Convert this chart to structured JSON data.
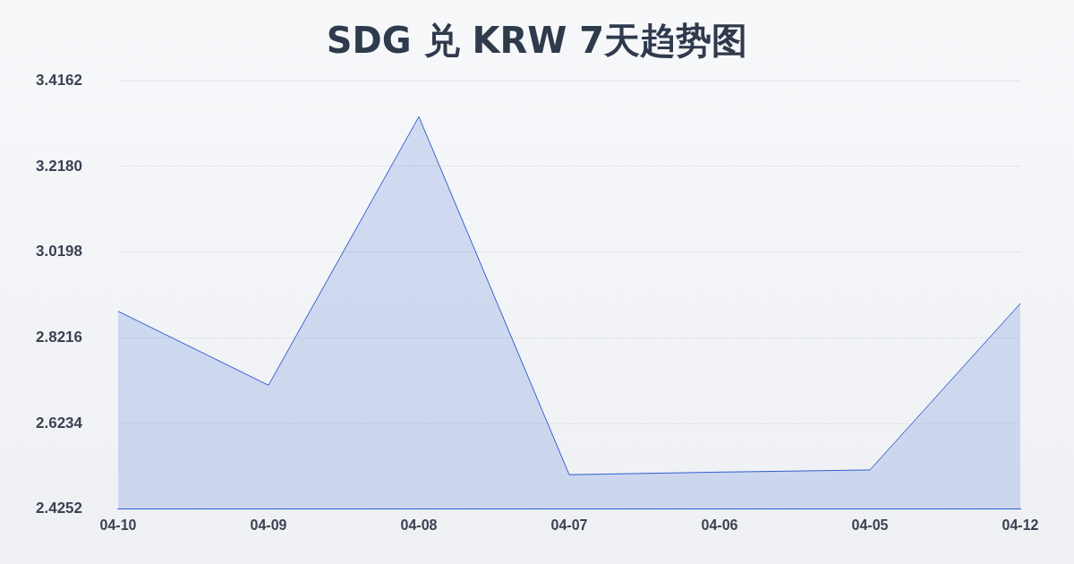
{
  "chart_data": {
    "type": "area",
    "title": "SDG 兑 KRW 7天趋势图",
    "categories": [
      "04-10",
      "04-09",
      "04-08",
      "04-07",
      "04-06",
      "04-05",
      "04-12"
    ],
    "series": [
      {
        "color": "#2f5fd0",
        "values": [
          2.883,
          2.712,
          3.333,
          2.505,
          2.511,
          2.516,
          2.901
        ]
      }
    ],
    "ylim": [
      2.4252,
      3.4162
    ],
    "yticks": [
      2.4252,
      2.6234,
      2.8216,
      3.0198,
      {
        "value": 3.218,
        "label": "3.2180"
      },
      3.4162
    ],
    "grid": "y",
    "legend": false,
    "marker": "none"
  }
}
